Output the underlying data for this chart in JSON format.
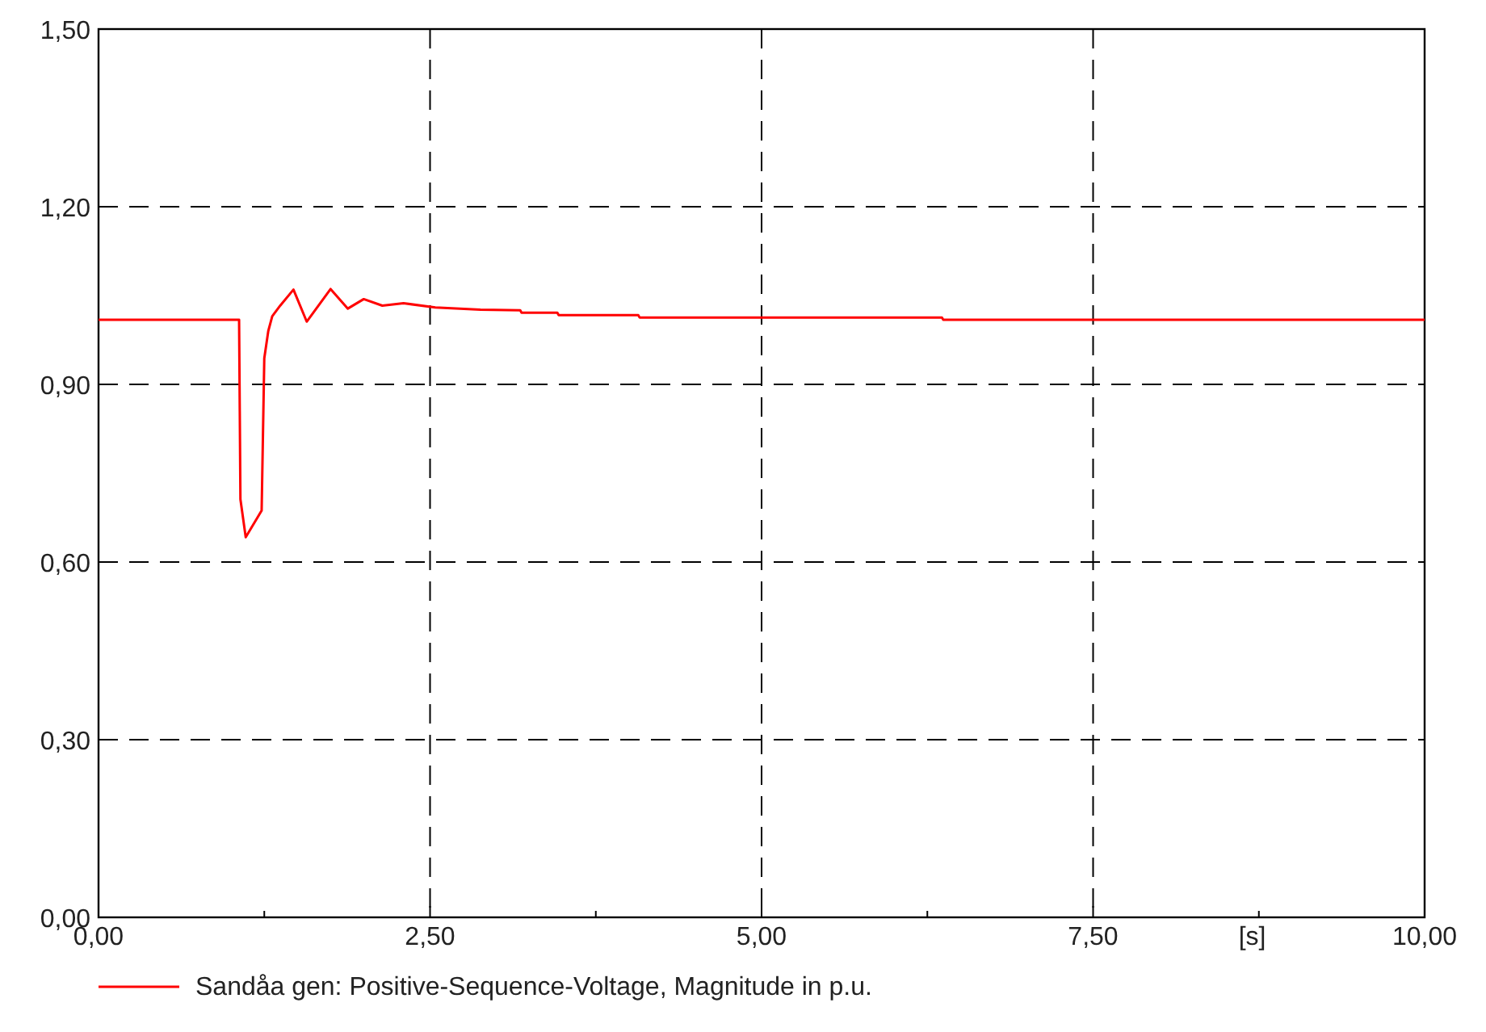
{
  "chart_data": {
    "type": "line",
    "xlabel": "[s]",
    "x": [
      0,
      1.06,
      1.07,
      1.11,
      1.23,
      1.25,
      1.28,
      1.31,
      1.37,
      1.47,
      1.57,
      1.75,
      1.88,
      2.0,
      2.14,
      2.3,
      2.54,
      2.88,
      3.18,
      3.19,
      3.46,
      3.47,
      4.07,
      4.08,
      6.36,
      6.37,
      10
    ],
    "series": [
      {
        "name": "Sandåa gen: Positive-Sequence-Voltage, Magnitude in p.u.",
        "color": "#ff0000",
        "values": [
          1.009,
          1.009,
          0.706,
          0.642,
          0.687,
          0.944,
          0.99,
          1.015,
          1.033,
          1.06,
          1.006,
          1.061,
          1.028,
          1.044,
          1.033,
          1.037,
          1.03,
          1.026,
          1.025,
          1.021,
          1.021,
          1.017,
          1.017,
          1.013,
          1.013,
          1.009,
          1.009
        ]
      }
    ],
    "xlim": [
      0,
      10
    ],
    "ylim": [
      0,
      1.5
    ],
    "xticks": [
      {
        "value": 0,
        "label": "0,00"
      },
      {
        "value": 1.25,
        "label": null
      },
      {
        "value": 2.5,
        "label": "2,50"
      },
      {
        "value": 3.75,
        "label": null
      },
      {
        "value": 5,
        "label": "5,00"
      },
      {
        "value": 6.25,
        "label": null
      },
      {
        "value": 7.5,
        "label": "7,50"
      },
      {
        "value": 8.75,
        "label": null
      },
      {
        "value": 10,
        "label": "10,00"
      }
    ],
    "yticks": [
      {
        "value": 0,
        "label": "0,00"
      },
      {
        "value": 0.3,
        "label": "0,30"
      },
      {
        "value": 0.6,
        "label": "0,60"
      },
      {
        "value": 0.9,
        "label": "0,90"
      },
      {
        "value": 1.2,
        "label": "1,20"
      },
      {
        "value": 1.5,
        "label": "1,50"
      }
    ],
    "grid": true,
    "legend": "bottom",
    "line_style": "solid"
  }
}
